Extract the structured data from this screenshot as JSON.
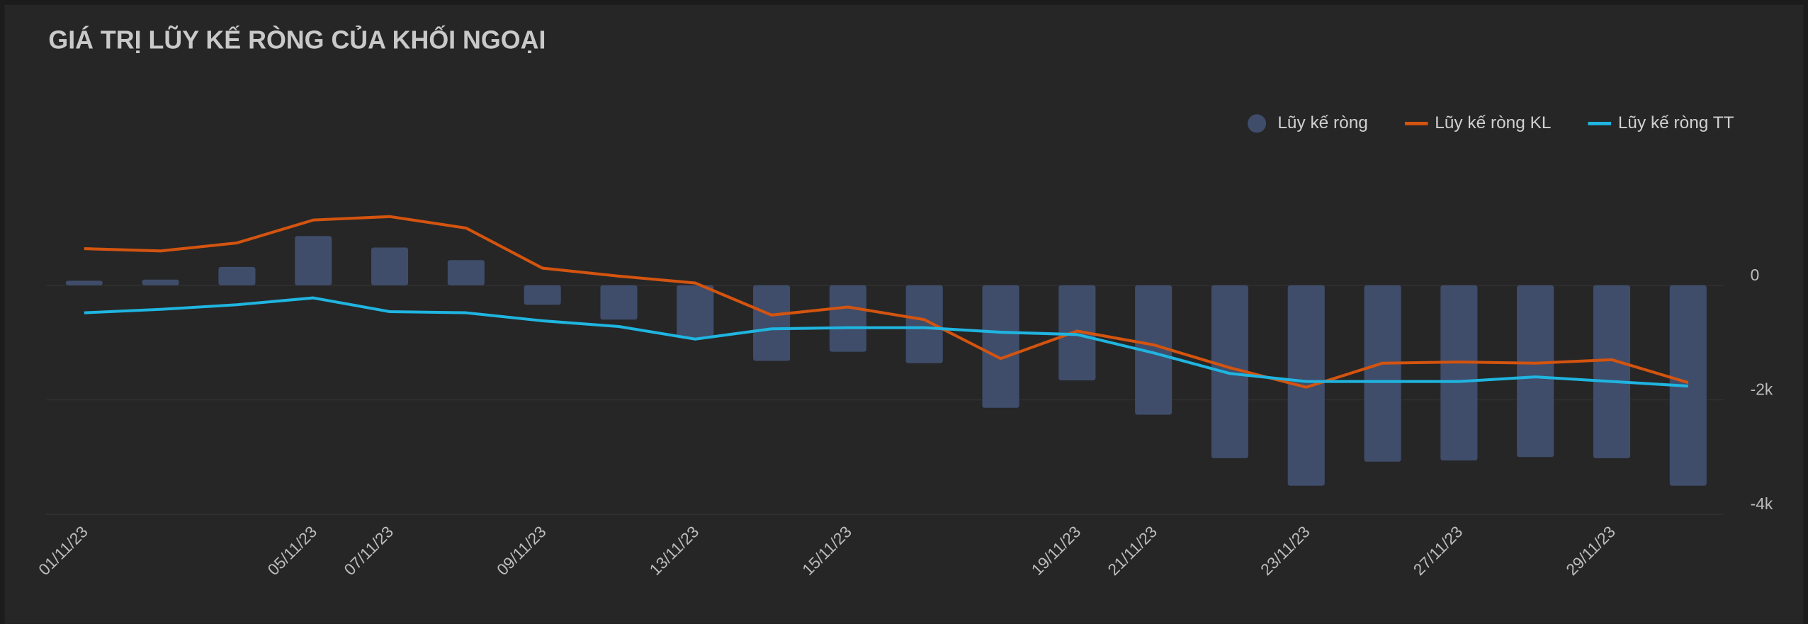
{
  "chart_data": {
    "type": "bar_line",
    "title": "GIÁ TRỊ LŨY KẾ RÒNG CỦA KHỐI NGOẠI",
    "categories": [
      "01/11/23",
      null,
      null,
      "05/11/23",
      "07/11/23",
      null,
      "09/11/23",
      null,
      "13/11/23",
      null,
      "15/11/23",
      null,
      null,
      "19/11/23",
      "21/11/23",
      null,
      "23/11/23",
      null,
      "27/11/23",
      null,
      "29/11/23",
      null
    ],
    "series": [
      {
        "name": "Lũy kế ròng",
        "type": "bar",
        "color": "#3f4d6b",
        "values": [
          80,
          100,
          320,
          860,
          660,
          440,
          -340,
          -600,
          -920,
          -1320,
          -1160,
          -1360,
          -2140,
          -1660,
          -2260,
          -3020,
          -3500,
          -3080,
          -3060,
          -3000,
          -3020,
          -3500
        ]
      },
      {
        "name": "Lũy kế ròng KL",
        "type": "line",
        "color": "#d4540f",
        "values": [
          640,
          600,
          740,
          1140,
          1200,
          1000,
          300,
          160,
          40,
          -520,
          -380,
          -600,
          -1280,
          -800,
          -1040,
          -1440,
          -1780,
          -1360,
          -1340,
          -1360,
          -1300,
          -1700
        ]
      },
      {
        "name": "Lũy kế ròng TT",
        "type": "line",
        "color": "#1fb5e0",
        "values": [
          -480,
          -420,
          -340,
          -220,
          -460,
          -480,
          -620,
          -720,
          -940,
          -760,
          -740,
          -740,
          -820,
          -860,
          -1180,
          -1540,
          -1680,
          -1680,
          -1680,
          -1600,
          -1680,
          -1760
        ]
      }
    ],
    "ylim": [
      -4000,
      2000
    ],
    "yticks": [
      {
        "value": 0,
        "label": "0"
      },
      {
        "value": -2000,
        "label": "-2k"
      },
      {
        "value": -4000,
        "label": "-4k"
      }
    ],
    "grid": true,
    "legend": "top-right"
  }
}
